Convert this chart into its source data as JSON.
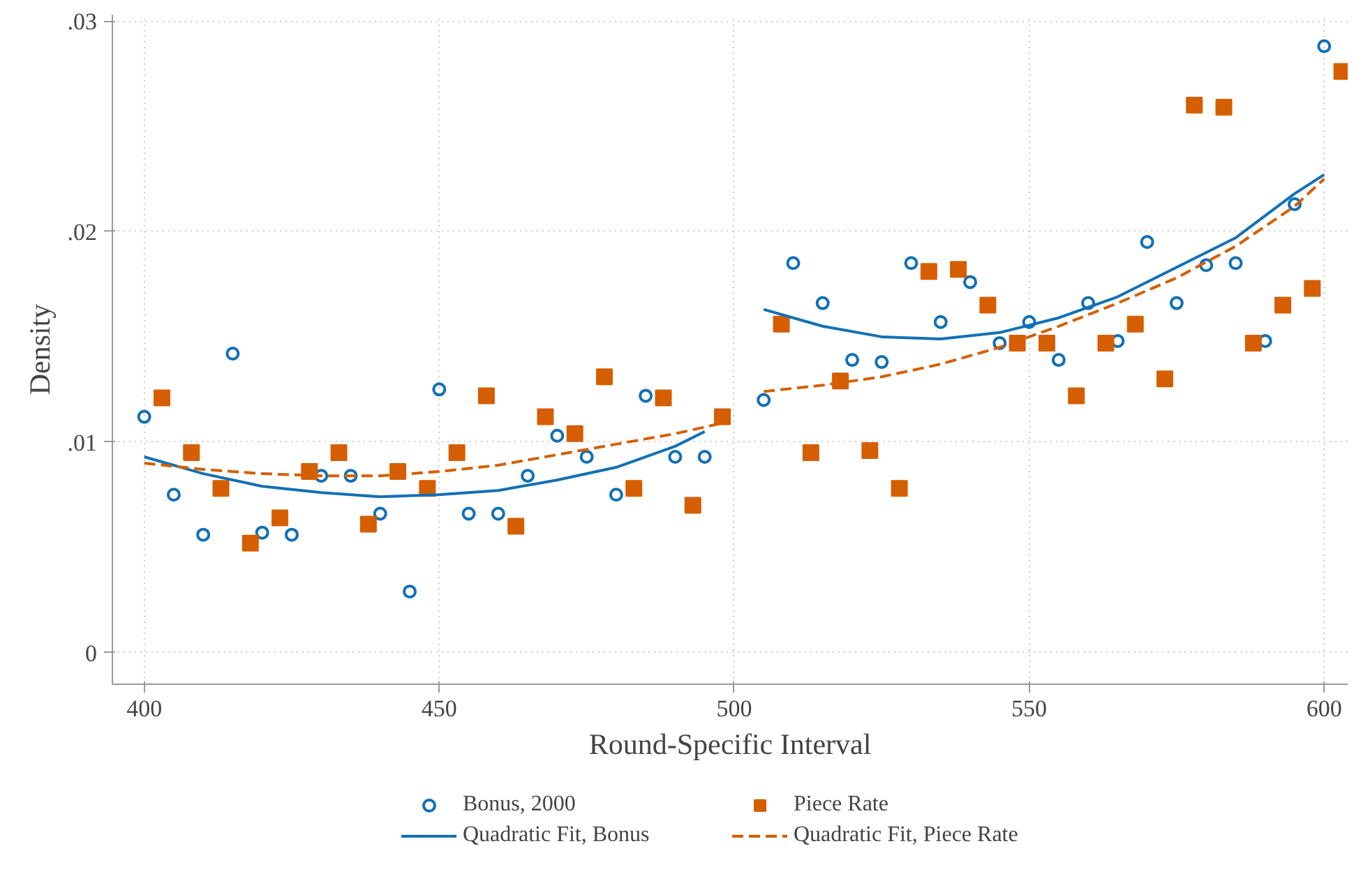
{
  "chart_data": {
    "type": "scatter",
    "xlabel": "Round-Specific Interval",
    "ylabel": "Density",
    "xlim": [
      394.6,
      604
    ],
    "ylim": [
      -0.0015,
      0.0303
    ],
    "xticks": [
      400,
      450,
      500,
      550,
      600
    ],
    "yticks": [
      {
        "value": 0,
        "label": "0"
      },
      {
        "value": 0.01,
        "label": ".01"
      },
      {
        "value": 0.02,
        "label": ".02"
      },
      {
        "value": 0.03,
        "label": ".03"
      }
    ],
    "grid": true,
    "legend": "bottom",
    "series": [
      {
        "name": "Bonus, 2000",
        "marker": "circle",
        "color": "#1170b5",
        "x": [
          400,
          405,
          410,
          415,
          420,
          425,
          430,
          435,
          440,
          445,
          450,
          455,
          460,
          465,
          470,
          475,
          480,
          485,
          490,
          495,
          505,
          510,
          515,
          520,
          525,
          530,
          535,
          540,
          545,
          550,
          555,
          560,
          565,
          570,
          575,
          580,
          585,
          590,
          595,
          600
        ],
        "values": [
          0.0112,
          0.0075,
          0.0056,
          0.0142,
          0.0057,
          0.0056,
          0.0084,
          0.0084,
          0.0066,
          0.0029,
          0.0125,
          0.0066,
          0.0066,
          0.0084,
          0.0103,
          0.0093,
          0.0075,
          0.0122,
          0.0093,
          0.0093,
          0.012,
          0.0185,
          0.0166,
          0.0139,
          0.0138,
          0.0185,
          0.0157,
          0.0176,
          0.0147,
          0.0157,
          0.0139,
          0.0166,
          0.0148,
          0.0195,
          0.0166,
          0.0184,
          0.0185,
          0.0148,
          0.0213,
          0.0288
        ]
      },
      {
        "name": "Piece Rate",
        "marker": "square",
        "color": "#d55e00",
        "x": [
          403,
          408,
          413,
          418,
          423,
          428,
          433,
          438,
          443,
          448,
          453,
          458,
          463,
          468,
          473,
          478,
          483,
          488,
          493,
          498,
          508,
          513,
          518,
          523,
          528,
          533,
          538,
          543,
          548,
          553,
          558,
          563,
          568,
          573,
          578,
          583,
          588,
          593,
          598,
          603
        ],
        "values": [
          0.0121,
          0.0095,
          0.0078,
          0.0052,
          0.0064,
          0.0086,
          0.0095,
          0.0061,
          0.0086,
          0.0078,
          0.0095,
          0.0122,
          0.006,
          0.0112,
          0.0104,
          0.0131,
          0.0078,
          0.0121,
          0.007,
          0.0112,
          0.0156,
          0.0095,
          0.0129,
          0.0096,
          0.0078,
          0.0181,
          0.0182,
          0.0165,
          0.0147,
          0.0147,
          0.0122,
          0.0147,
          0.0156,
          0.013,
          0.026,
          0.0259,
          0.0147,
          0.0165,
          0.0173,
          0.0276
        ]
      },
      {
        "name": "Quadratic Fit, Bonus",
        "type": "line",
        "line_style": "solid",
        "color": "#1170b5",
        "x": [
          400,
          410,
          420,
          430,
          440,
          450,
          460,
          470,
          480,
          490,
          495,
          null,
          505,
          515,
          525,
          535,
          545,
          555,
          565,
          575,
          585,
          595,
          600
        ],
        "values": [
          0.0093,
          0.0085,
          0.0079,
          0.0076,
          0.0074,
          0.0075,
          0.0077,
          0.0082,
          0.0088,
          0.0098,
          0.0105,
          null,
          0.0163,
          0.0155,
          0.015,
          0.0149,
          0.0152,
          0.0159,
          0.0169,
          0.0183,
          0.0197,
          0.0218,
          0.0227
        ]
      },
      {
        "name": "Quadratic Fit, Piece Rate",
        "type": "line",
        "line_style": "dashed",
        "color": "#d55e00",
        "x": [
          400,
          410,
          420,
          430,
          440,
          450,
          460,
          470,
          480,
          490,
          498,
          null,
          505,
          515,
          525,
          535,
          545,
          555,
          565,
          575,
          585,
          595,
          600
        ],
        "values": [
          0.009,
          0.0087,
          0.0085,
          0.0084,
          0.0084,
          0.0086,
          0.0089,
          0.0094,
          0.0099,
          0.0104,
          0.0109,
          null,
          0.0124,
          0.0127,
          0.0131,
          0.0137,
          0.0145,
          0.0155,
          0.0166,
          0.0178,
          0.0193,
          0.0212,
          0.0225
        ]
      }
    ]
  }
}
